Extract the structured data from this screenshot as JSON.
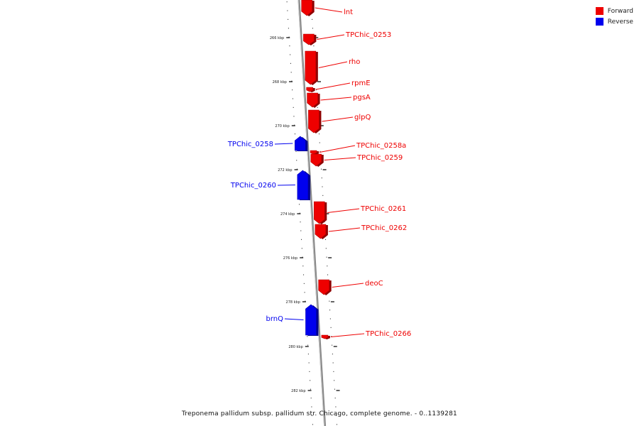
{
  "legend": {
    "items": [
      {
        "label": "Forward",
        "color": "#ee0000"
      },
      {
        "label": "Reverse",
        "color": "#0000ee"
      }
    ]
  },
  "caption": "Treponema pallidum subsp. pallidum str. Chicago, complete genome. - 0..1139281",
  "colors": {
    "forward": "#ee0000",
    "reverse": "#0000ee",
    "backbone": "#888888"
  },
  "ticks": [
    {
      "label": "266 kbp"
    },
    {
      "label": "268 kbp"
    },
    {
      "label": "270 kbp"
    },
    {
      "label": "272 kbp"
    },
    {
      "label": "274 kbp"
    },
    {
      "label": "276 kbp"
    },
    {
      "label": "278 kbp"
    },
    {
      "label": "280 kbp"
    },
    {
      "label": "282 kbp"
    }
  ],
  "genes": [
    {
      "name": "lnt",
      "strand": "forward"
    },
    {
      "name": "TPChic_0253",
      "strand": "forward"
    },
    {
      "name": "rho",
      "strand": "forward"
    },
    {
      "name": "rpmE",
      "strand": "forward"
    },
    {
      "name": "pgsA",
      "strand": "forward"
    },
    {
      "name": "glpQ",
      "strand": "forward"
    },
    {
      "name": "TPChic_0258",
      "strand": "reverse"
    },
    {
      "name": "TPChic_0258a",
      "strand": "forward"
    },
    {
      "name": "TPChic_0259",
      "strand": "forward"
    },
    {
      "name": "TPChic_0260",
      "strand": "reverse"
    },
    {
      "name": "TPChic_0261",
      "strand": "forward"
    },
    {
      "name": "TPChic_0262",
      "strand": "forward"
    },
    {
      "name": "deoC",
      "strand": "forward"
    },
    {
      "name": "brnQ",
      "strand": "reverse"
    },
    {
      "name": "TPChic_0266",
      "strand": "forward"
    }
  ]
}
